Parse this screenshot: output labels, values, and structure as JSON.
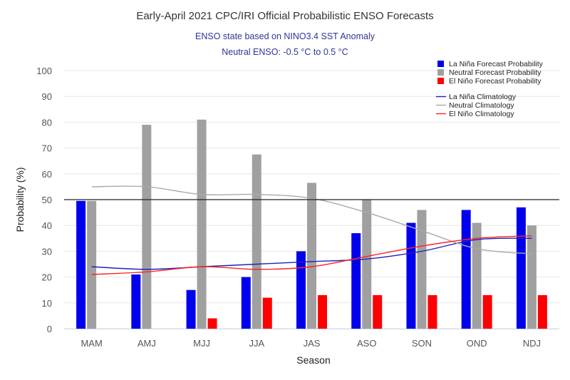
{
  "chart_data": {
    "type": "bar",
    "title": "Early-April 2021 CPC/IRI Official Probabilistic ENSO Forecasts",
    "subtitle": [
      "ENSO state based on NINO3.4 SST Anomaly",
      "Neutral ENSO: -0.5 °C to 0.5 °C"
    ],
    "xlabel": "Season",
    "ylabel": "Probability (%)",
    "ylim": [
      0,
      100
    ],
    "yticks": [
      0,
      10,
      20,
      30,
      40,
      50,
      60,
      70,
      80,
      90,
      100
    ],
    "reference_line": 50,
    "categories": [
      "MAM",
      "AMJ",
      "MJJ",
      "JJA",
      "JAS",
      "ASO",
      "SON",
      "OND",
      "NDJ"
    ],
    "series": [
      {
        "name": "La Niña Forecast Probability",
        "type": "bar",
        "color": "#0000ee",
        "values": [
          49.5,
          21,
          15,
          20,
          30,
          37,
          41,
          46,
          47
        ]
      },
      {
        "name": "Neutral Forecast Probability",
        "type": "bar",
        "color": "#a0a0a0",
        "values": [
          49.5,
          79,
          81,
          67.5,
          56.5,
          50,
          46,
          41,
          40
        ]
      },
      {
        "name": "El Niño Forecast Probability",
        "type": "bar",
        "color": "#ff0000",
        "values": [
          0,
          0,
          4,
          12,
          13,
          13,
          13,
          13,
          13
        ]
      },
      {
        "name": "La Niña Climatology",
        "type": "line",
        "color": "#2222bb",
        "values": [
          24,
          23,
          24,
          25,
          26,
          27,
          30,
          34.5,
          35
        ]
      },
      {
        "name": "Neutral Climatology",
        "type": "line",
        "color": "#aaaaaa",
        "values": [
          55,
          55,
          52,
          52,
          50.5,
          45,
          38,
          31,
          29
        ]
      },
      {
        "name": "El Niño Climatology",
        "type": "line",
        "color": "#ff2222",
        "values": [
          21,
          22,
          24,
          23,
          24,
          28,
          32,
          35,
          36
        ]
      }
    ],
    "legend_position": "top-right",
    "grid": true
  }
}
